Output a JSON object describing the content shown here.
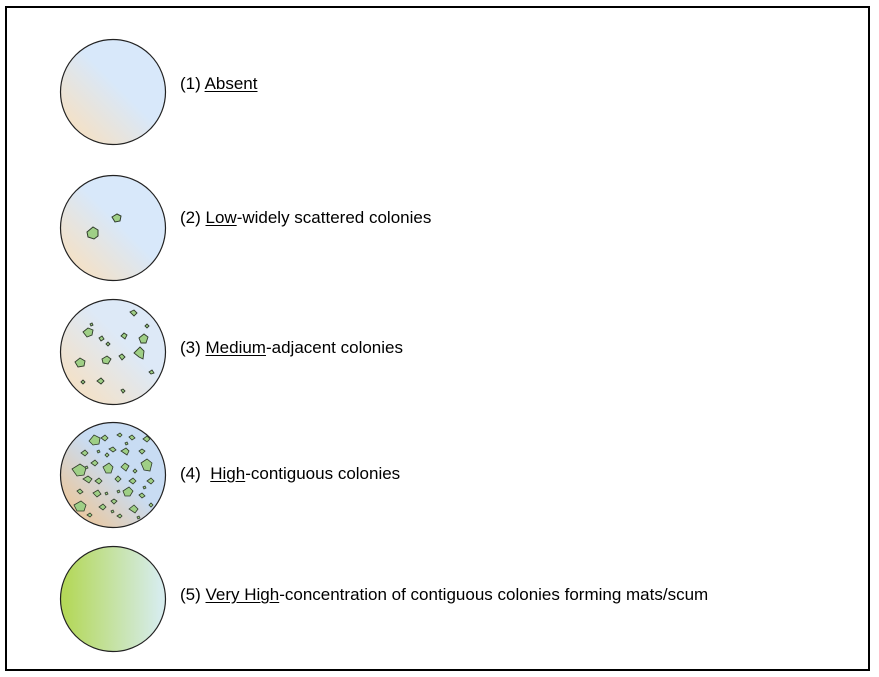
{
  "levels": [
    {
      "number": "(1) ",
      "keyword": "Absent",
      "rest": "",
      "colonies": 0
    },
    {
      "number": "(2) ",
      "keyword": "Low",
      "rest": "-widely scattered colonies",
      "colonies": 2
    },
    {
      "number": "(3) ",
      "keyword": "Medium",
      "rest": "-adjacent colonies",
      "colonies": 16
    },
    {
      "number": "(4)  ",
      "keyword": "High",
      "rest": "-contiguous colonies",
      "colonies": 40
    },
    {
      "number": "(5) ",
      "keyword": "Very High",
      "rest": "-concentration of contiguous colonies forming mats/scum",
      "colonies": "scum"
    }
  ],
  "colors": {
    "water_blue": "#d8e8fa",
    "water_tan": "#f3e1c8",
    "colony_fill": "#9fcf86",
    "colony_stroke": "#2f3b2a",
    "scum_green": "#b4d85a",
    "scum_pale": "#d6ecec"
  }
}
